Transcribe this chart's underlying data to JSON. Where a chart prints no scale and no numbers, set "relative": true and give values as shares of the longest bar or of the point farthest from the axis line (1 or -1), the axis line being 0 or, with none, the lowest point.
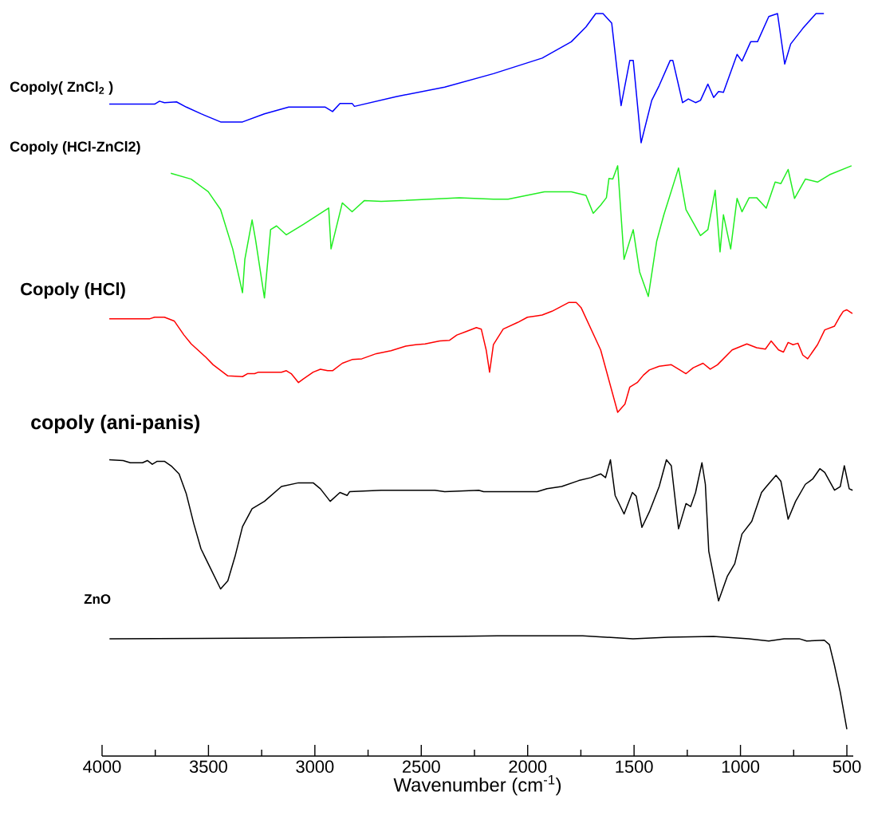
{
  "chart_data": {
    "type": "line",
    "relative": true,
    "xlabel": "Wavenumber (cm$^{-1}$)",
    "xlim": [
      4000,
      470
    ],
    "xticks": [
      4000,
      {
        "value": 3750,
        "label": null
      },
      3500,
      {
        "value": 3250,
        "label": null
      },
      3000,
      {
        "value": 2750,
        "label": null
      },
      2500,
      {
        "value": 2250,
        "label": null
      },
      2000,
      {
        "value": 1750,
        "label": null
      },
      1500,
      {
        "value": 1250,
        "label": null
      },
      1000,
      {
        "value": 750,
        "label": null
      },
      500
    ],
    "series": [
      {
        "name": "Copoly( ZnCl$_{2}$ )",
        "color": "#0000ff",
        "x": [
          3966,
          3753,
          3730,
          3707,
          3650,
          3604,
          3535,
          3443,
          3340,
          3237,
          3123,
          2951,
          2917,
          2882,
          2825,
          2814,
          2619,
          2390,
          2161,
          1932,
          1795,
          1726,
          1680,
          1646,
          1605,
          1561,
          1520,
          1504,
          1467,
          1417,
          1382,
          1330,
          1318,
          1272,
          1245,
          1211,
          1188,
          1153,
          1126,
          1103,
          1080,
          1016,
          993,
          952,
          920,
          867,
          826,
          792,
          764,
          707,
          645,
          608
        ],
        "values": [
          0.878,
          0.878,
          0.882,
          0.88,
          0.881,
          0.874,
          0.865,
          0.854,
          0.854,
          0.865,
          0.874,
          0.874,
          0.868,
          0.879,
          0.879,
          0.875,
          0.888,
          0.901,
          0.919,
          0.94,
          0.962,
          0.982,
          1.0,
          1.0,
          0.987,
          0.876,
          0.937,
          0.937,
          0.826,
          0.883,
          0.903,
          0.937,
          0.937,
          0.88,
          0.885,
          0.88,
          0.883,
          0.905,
          0.887,
          0.895,
          0.894,
          0.945,
          0.936,
          0.962,
          0.962,
          0.996,
          1.0,
          0.932,
          0.959,
          0.98,
          1.0,
          1.0
        ]
      },
      {
        "name": "Copoly (HCl-ZnCl2)",
        "color": "#22ee22",
        "x": [
          3677,
          3581,
          3501,
          3443,
          3386,
          3340,
          3329,
          3295,
          3279,
          3237,
          3208,
          3180,
          3134,
          3054,
          2935,
          2924,
          2871,
          2825,
          2768,
          2688,
          2596,
          2321,
          2161,
          2092,
          1921,
          1795,
          1726,
          1692,
          1657,
          1630,
          1618,
          1600,
          1577,
          1547,
          1504,
          1474,
          1433,
          1394,
          1360,
          1291,
          1256,
          1188,
          1153,
          1119,
          1096,
          1080,
          1046,
          1016,
          993,
          959,
          924,
          879,
          837,
          810,
          776,
          746,
          695,
          638,
          581,
          478
        ],
        "values": [
          0.785,
          0.777,
          0.76,
          0.736,
          0.683,
          0.624,
          0.669,
          0.722,
          0.696,
          0.617,
          0.709,
          0.714,
          0.702,
          0.716,
          0.738,
          0.683,
          0.745,
          0.733,
          0.748,
          0.747,
          0.748,
          0.752,
          0.75,
          0.75,
          0.76,
          0.76,
          0.755,
          0.731,
          0.742,
          0.752,
          0.778,
          0.777,
          0.795,
          0.669,
          0.709,
          0.652,
          0.619,
          0.693,
          0.729,
          0.792,
          0.736,
          0.701,
          0.709,
          0.762,
          0.679,
          0.729,
          0.683,
          0.751,
          0.733,
          0.752,
          0.752,
          0.738,
          0.773,
          0.771,
          0.79,
          0.751,
          0.777,
          0.773,
          0.783,
          0.795
        ]
      },
      {
        "name": "Copoly (HCl)",
        "color": "#ff0000",
        "x": [
          3966,
          3775,
          3753,
          3707,
          3661,
          3615,
          3581,
          3512,
          3478,
          3409,
          3340,
          3317,
          3283,
          3265,
          3157,
          3134,
          3111,
          3077,
          3054,
          3008,
          2974,
          2940,
          2917,
          2871,
          2825,
          2779,
          2711,
          2642,
          2573,
          2527,
          2482,
          2413,
          2367,
          2333,
          2287,
          2241,
          2218,
          2195,
          2179,
          2161,
          2115,
          2047,
          2001,
          1955,
          1932,
          1886,
          1852,
          1806,
          1772,
          1749,
          1657,
          1577,
          1543,
          1520,
          1485,
          1456,
          1428,
          1382,
          1325,
          1291,
          1256,
          1222,
          1176,
          1142,
          1108,
          1039,
          970,
          924,
          883,
          856,
          821,
          798,
          776,
          753,
          730,
          707,
          684,
          638,
          604,
          558,
          535,
          517,
          501,
          474
        ],
        "values": [
          0.589,
          0.589,
          0.591,
          0.591,
          0.586,
          0.567,
          0.555,
          0.537,
          0.527,
          0.512,
          0.511,
          0.515,
          0.515,
          0.517,
          0.517,
          0.519,
          0.515,
          0.503,
          0.508,
          0.517,
          0.521,
          0.519,
          0.519,
          0.529,
          0.534,
          0.535,
          0.542,
          0.546,
          0.552,
          0.554,
          0.555,
          0.559,
          0.56,
          0.567,
          0.572,
          0.577,
          0.575,
          0.547,
          0.517,
          0.554,
          0.575,
          0.584,
          0.591,
          0.593,
          0.594,
          0.599,
          0.604,
          0.611,
          0.611,
          0.604,
          0.547,
          0.463,
          0.474,
          0.497,
          0.503,
          0.513,
          0.52,
          0.525,
          0.527,
          0.521,
          0.515,
          0.523,
          0.529,
          0.521,
          0.527,
          0.547,
          0.555,
          0.55,
          0.548,
          0.559,
          0.547,
          0.544,
          0.557,
          0.554,
          0.556,
          0.54,
          0.535,
          0.554,
          0.574,
          0.579,
          0.591,
          0.599,
          0.601,
          0.596
        ]
      },
      {
        "name": "copoly (ani-panis)",
        "color": "#000000",
        "x": [
          3966,
          3901,
          3867,
          3810,
          3787,
          3764,
          3741,
          3707,
          3672,
          3638,
          3604,
          3569,
          3535,
          3489,
          3443,
          3409,
          3375,
          3340,
          3295,
          3237,
          3157,
          3077,
          3008,
          2974,
          2928,
          2882,
          2848,
          2837,
          2688,
          2436,
          2390,
          2230,
          2207,
          1955,
          1909,
          1840,
          1760,
          1703,
          1657,
          1634,
          1611,
          1589,
          1547,
          1508,
          1490,
          1463,
          1428,
          1382,
          1348,
          1325,
          1291,
          1256,
          1234,
          1211,
          1181,
          1165,
          1149,
          1103,
          1062,
          1027,
          993,
          947,
          901,
          878,
          833,
          810,
          776,
          741,
          695,
          661,
          627,
          604,
          581,
          558,
          531,
          512,
          489,
          473
        ],
        "values": [
          0.399,
          0.398,
          0.395,
          0.395,
          0.398,
          0.393,
          0.397,
          0.397,
          0.39,
          0.38,
          0.353,
          0.313,
          0.279,
          0.252,
          0.225,
          0.236,
          0.269,
          0.309,
          0.333,
          0.343,
          0.363,
          0.368,
          0.368,
          0.36,
          0.343,
          0.355,
          0.351,
          0.356,
          0.358,
          0.358,
          0.356,
          0.358,
          0.356,
          0.356,
          0.36,
          0.363,
          0.371,
          0.375,
          0.38,
          0.375,
          0.399,
          0.351,
          0.326,
          0.355,
          0.35,
          0.308,
          0.329,
          0.363,
          0.399,
          0.391,
          0.306,
          0.34,
          0.336,
          0.355,
          0.395,
          0.366,
          0.276,
          0.209,
          0.242,
          0.259,
          0.299,
          0.316,
          0.355,
          0.363,
          0.378,
          0.37,
          0.319,
          0.343,
          0.366,
          0.373,
          0.387,
          0.382,
          0.37,
          0.358,
          0.363,
          0.391,
          0.36,
          0.358
        ]
      },
      {
        "name": "ZnO",
        "color": "#000000",
        "x": [
          3965,
          3160,
          2356,
          2143,
          1741,
          1505,
          1339,
          1127,
          961,
          867,
          795,
          724,
          689,
          606,
          582,
          559,
          531,
          500
        ],
        "values": [
          0.158,
          0.159,
          0.161,
          0.162,
          0.162,
          0.158,
          0.16,
          0.161,
          0.158,
          0.155,
          0.158,
          0.158,
          0.155,
          0.156,
          0.15,
          0.123,
          0.086,
          0.036
        ]
      }
    ]
  }
}
